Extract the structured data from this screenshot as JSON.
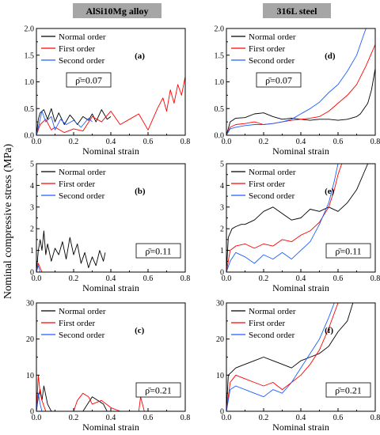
{
  "figure": {
    "ylabel": "Nominal compressive stress (MPa)",
    "column_headers": [
      "AlSi10Mg alloy",
      "316L steel"
    ],
    "colors": {
      "normal": "#000000",
      "first": "#ff0000",
      "second": "#1f5fff",
      "header_bg": "#a6a6a6"
    }
  },
  "chart_data": [
    {
      "type": "line",
      "panel": "(a)",
      "annotation": "ρ̄=0.07",
      "xlabel": "Nominal strain",
      "xlim": [
        0,
        0.8
      ],
      "ylim": [
        0,
        2.0
      ],
      "xticks": [
        "0.0",
        "0.2",
        "0.4",
        "0.6",
        "0.8"
      ],
      "yticks": [
        "0.0",
        "0.5",
        "1.0",
        "1.5",
        "2.0"
      ],
      "legend": [
        "Normal order",
        "First order",
        "Second order"
      ],
      "series": [
        {
          "name": "Normal order",
          "color": "#000000",
          "x": [
            0,
            0.01,
            0.02,
            0.04,
            0.06,
            0.08,
            0.1,
            0.12,
            0.15,
            0.18,
            0.2,
            0.22,
            0.25,
            0.28,
            0.3,
            0.32,
            0.35,
            0.38,
            0.4
          ],
          "y": [
            0,
            0.3,
            0.42,
            0.48,
            0.3,
            0.5,
            0.25,
            0.42,
            0.2,
            0.38,
            0.3,
            0.2,
            0.35,
            0.28,
            0.4,
            0.25,
            0.48,
            0.3,
            0.35
          ]
        },
        {
          "name": "First order",
          "color": "#ff0000",
          "x": [
            0,
            0.02,
            0.05,
            0.08,
            0.1,
            0.15,
            0.2,
            0.25,
            0.3,
            0.35,
            0.4,
            0.45,
            0.5,
            0.55,
            0.6,
            0.65,
            0.68,
            0.7,
            0.72,
            0.74,
            0.76,
            0.78,
            0.8
          ],
          "y": [
            0,
            0.2,
            0.3,
            0.1,
            0.15,
            0.05,
            0.12,
            0.08,
            0.35,
            0.25,
            0.45,
            0.2,
            0.3,
            0.4,
            0.1,
            0.5,
            0.7,
            0.45,
            0.85,
            0.6,
            0.95,
            0.75,
            1.1
          ]
        },
        {
          "name": "Second order",
          "color": "#1f5fff",
          "x": [
            0,
            0.01,
            0.03,
            0.05,
            0.08,
            0.1,
            0.13,
            0.16,
            0.2,
            0.24,
            0.28,
            0.3
          ],
          "y": [
            0,
            0.15,
            0.45,
            0.25,
            0.35,
            0.1,
            0.3,
            0.2,
            0.28,
            0.15,
            0.32,
            0.25
          ]
        }
      ]
    },
    {
      "type": "line",
      "panel": "(d)",
      "annotation": "ρ̄=0.07",
      "xlabel": "Nominal strain",
      "xlim": [
        0,
        0.8
      ],
      "ylim": [
        0,
        2.0
      ],
      "xticks": [
        "0.0",
        "0.2",
        "0.4",
        "0.6",
        "0.8"
      ],
      "yticks": [
        "0.0",
        "0.5",
        "1.0",
        "1.5",
        "2.0"
      ],
      "legend": [
        "Normal order",
        "First order",
        "Second order"
      ],
      "series": [
        {
          "name": "Normal order",
          "color": "#000000",
          "x": [
            0,
            0.02,
            0.05,
            0.1,
            0.15,
            0.2,
            0.25,
            0.3,
            0.35,
            0.4,
            0.45,
            0.5,
            0.55,
            0.6,
            0.65,
            0.7,
            0.72,
            0.74,
            0.76,
            0.78,
            0.8
          ],
          "y": [
            0,
            0.25,
            0.32,
            0.33,
            0.4,
            0.42,
            0.35,
            0.3,
            0.32,
            0.3,
            0.28,
            0.3,
            0.3,
            0.28,
            0.3,
            0.35,
            0.4,
            0.5,
            0.6,
            0.85,
            1.25
          ]
        },
        {
          "name": "First order",
          "color": "#ff0000",
          "x": [
            0,
            0.02,
            0.05,
            0.1,
            0.15,
            0.2,
            0.25,
            0.3,
            0.35,
            0.4,
            0.45,
            0.5,
            0.55,
            0.6,
            0.65,
            0.7,
            0.75,
            0.8
          ],
          "y": [
            0,
            0.15,
            0.2,
            0.22,
            0.25,
            0.2,
            0.22,
            0.25,
            0.28,
            0.3,
            0.32,
            0.35,
            0.45,
            0.6,
            0.75,
            0.95,
            1.3,
            1.7
          ]
        },
        {
          "name": "Second order",
          "color": "#1f5fff",
          "x": [
            0,
            0.02,
            0.05,
            0.1,
            0.15,
            0.2,
            0.25,
            0.3,
            0.35,
            0.4,
            0.45,
            0.5,
            0.55,
            0.6,
            0.65,
            0.7,
            0.73,
            0.75
          ],
          "y": [
            0,
            0.12,
            0.15,
            0.18,
            0.2,
            0.2,
            0.22,
            0.25,
            0.3,
            0.4,
            0.5,
            0.62,
            0.8,
            0.95,
            1.2,
            1.5,
            1.8,
            2.0
          ]
        }
      ]
    },
    {
      "type": "line",
      "panel": "(b)",
      "annotation": "ρ̄=0.11",
      "xlabel": "Nominal strain",
      "xlim": [
        0,
        0.8
      ],
      "ylim": [
        0,
        5
      ],
      "xticks": [
        "0.0",
        "0.2",
        "0.4",
        "0.6",
        "0.8"
      ],
      "yticks": [
        "0",
        "1",
        "2",
        "3",
        "4",
        "5"
      ],
      "legend": [
        "Normal order",
        "First order",
        "Second order"
      ],
      "series": [
        {
          "name": "Normal order",
          "color": "#000000",
          "x": [
            0,
            0.01,
            0.02,
            0.03,
            0.04,
            0.05,
            0.06,
            0.08,
            0.1,
            0.12,
            0.14,
            0.16,
            0.18,
            0.2,
            0.22,
            0.24,
            0.26,
            0.28,
            0.3,
            0.32,
            0.34,
            0.36,
            0.37
          ],
          "y": [
            0,
            1.0,
            1.5,
            1.0,
            1.9,
            0.8,
            1.3,
            0.5,
            1.1,
            0.8,
            1.4,
            0.6,
            1.6,
            0.8,
            1.3,
            0.4,
            0.9,
            0.2,
            0.7,
            0.3,
            1.0,
            0.5,
            0.9
          ]
        },
        {
          "name": "First order",
          "color": "#ff0000",
          "x": [
            0,
            0.01,
            0.02,
            0.03
          ],
          "y": [
            0,
            0.4,
            0.2,
            0
          ]
        },
        {
          "name": "Second order",
          "color": "#1f5fff",
          "x": [
            0,
            0.01,
            0.02
          ],
          "y": [
            0,
            0.3,
            0
          ]
        }
      ]
    },
    {
      "type": "line",
      "panel": "(e)",
      "annotation": "ρ̄=0.11",
      "xlabel": "Nominal strain",
      "xlim": [
        0,
        0.8
      ],
      "ylim": [
        0,
        5
      ],
      "xticks": [
        "0.0",
        "0.2",
        "0.4",
        "0.6",
        "0.8"
      ],
      "yticks": [
        "0",
        "1",
        "2",
        "3",
        "4",
        "5"
      ],
      "legend": [
        "Normal order",
        "First order",
        "Second order"
      ],
      "series": [
        {
          "name": "Normal order",
          "color": "#000000",
          "x": [
            0,
            0.01,
            0.03,
            0.05,
            0.08,
            0.1,
            0.15,
            0.2,
            0.25,
            0.3,
            0.35,
            0.4,
            0.45,
            0.5,
            0.55,
            0.6,
            0.65,
            0.7,
            0.72,
            0.74,
            0.76
          ],
          "y": [
            0,
            1.6,
            2.0,
            2.1,
            2.2,
            2.2,
            2.4,
            2.8,
            3.0,
            2.7,
            2.4,
            2.5,
            2.9,
            2.8,
            3.0,
            2.8,
            3.2,
            3.8,
            4.2,
            4.6,
            5.0
          ]
        },
        {
          "name": "First order",
          "color": "#ff0000",
          "x": [
            0,
            0.02,
            0.05,
            0.1,
            0.15,
            0.2,
            0.25,
            0.3,
            0.35,
            0.4,
            0.45,
            0.5,
            0.55,
            0.58,
            0.6,
            0.62
          ],
          "y": [
            0,
            1.0,
            1.2,
            1.3,
            1.1,
            1.3,
            1.2,
            1.5,
            1.4,
            1.7,
            1.9,
            2.3,
            3.0,
            3.8,
            4.5,
            5.0
          ]
        },
        {
          "name": "Second order",
          "color": "#1f5fff",
          "x": [
            0,
            0.02,
            0.05,
            0.1,
            0.15,
            0.2,
            0.25,
            0.3,
            0.35,
            0.4,
            0.45,
            0.5,
            0.55,
            0.58,
            0.6
          ],
          "y": [
            0,
            0.5,
            0.9,
            0.7,
            0.4,
            0.8,
            0.6,
            0.9,
            0.6,
            1.0,
            1.4,
            2.2,
            3.2,
            4.2,
            5.0
          ]
        }
      ]
    },
    {
      "type": "line",
      "panel": "(c)",
      "annotation": "ρ̄=0.21",
      "xlabel": "Nominal strain",
      "xlim": [
        0,
        0.8
      ],
      "ylim": [
        0,
        30
      ],
      "xticks": [
        "0.0",
        "0.2",
        "0.4",
        "0.6",
        "0.8"
      ],
      "yticks": [
        "0",
        "10",
        "20",
        "30"
      ],
      "legend": [
        "Normal order",
        "First order",
        "Second order"
      ],
      "series": [
        {
          "name": "Normal order",
          "color": "#000000",
          "x": [
            0,
            0.01,
            0.02,
            0.03,
            0.04,
            0.06,
            0.08,
            0.1,
            0.12,
            0.15,
            0.2,
            0.25,
            0.3,
            0.33,
            0.36,
            0.38
          ],
          "y": [
            0,
            4,
            6,
            3,
            7,
            2,
            0,
            0,
            0,
            0,
            0,
            0,
            4,
            3,
            2,
            0
          ]
        },
        {
          "name": "First order",
          "color": "#ff0000",
          "x": [
            0,
            0.01,
            0.02,
            0.03,
            0.05,
            0.1,
            0.15,
            0.2,
            0.22,
            0.25,
            0.28,
            0.3,
            0.35,
            0.4,
            0.45,
            0.5,
            0.55,
            0.56,
            0.58
          ],
          "y": [
            0,
            10,
            5,
            3,
            0,
            0,
            0,
            0,
            3,
            5,
            4,
            2,
            3,
            1,
            0,
            0,
            0,
            4,
            0
          ]
        },
        {
          "name": "Second order",
          "color": "#1f5fff",
          "x": [
            0,
            0.01,
            0.02,
            0.03
          ],
          "y": [
            0,
            5,
            2,
            0
          ]
        }
      ]
    },
    {
      "type": "line",
      "panel": "(f)",
      "annotation": "ρ̄=0.21",
      "xlabel": "Nominal strain",
      "xlim": [
        0,
        0.8
      ],
      "ylim": [
        0,
        30
      ],
      "xticks": [
        "0.0",
        "0.2",
        "0.4",
        "0.6",
        "0.8"
      ],
      "yticks": [
        "0",
        "10",
        "20",
        "30"
      ],
      "legend": [
        "Normal order",
        "First order",
        "Second order"
      ],
      "series": [
        {
          "name": "Normal order",
          "color": "#000000",
          "x": [
            0,
            0.01,
            0.03,
            0.05,
            0.1,
            0.15,
            0.2,
            0.25,
            0.3,
            0.35,
            0.4,
            0.45,
            0.5,
            0.55,
            0.6,
            0.65,
            0.68
          ],
          "y": [
            0,
            10,
            11,
            12,
            13,
            14,
            15,
            14,
            13,
            12,
            14,
            15,
            16,
            18,
            22,
            25,
            30
          ]
        },
        {
          "name": "First order",
          "color": "#ff0000",
          "x": [
            0,
            0.02,
            0.05,
            0.1,
            0.15,
            0.2,
            0.25,
            0.3,
            0.35,
            0.4,
            0.45,
            0.5,
            0.55,
            0.6
          ],
          "y": [
            0,
            8,
            10,
            9,
            8,
            7,
            8,
            6,
            8,
            10,
            13,
            17,
            23,
            30
          ]
        },
        {
          "name": "Second order",
          "color": "#1f5fff",
          "x": [
            0,
            0.02,
            0.05,
            0.1,
            0.15,
            0.2,
            0.25,
            0.3,
            0.35,
            0.4,
            0.45,
            0.5,
            0.55,
            0.58
          ],
          "y": [
            0,
            6,
            7,
            6,
            5,
            4,
            6,
            5,
            8,
            12,
            16,
            20,
            26,
            30
          ]
        }
      ]
    }
  ]
}
